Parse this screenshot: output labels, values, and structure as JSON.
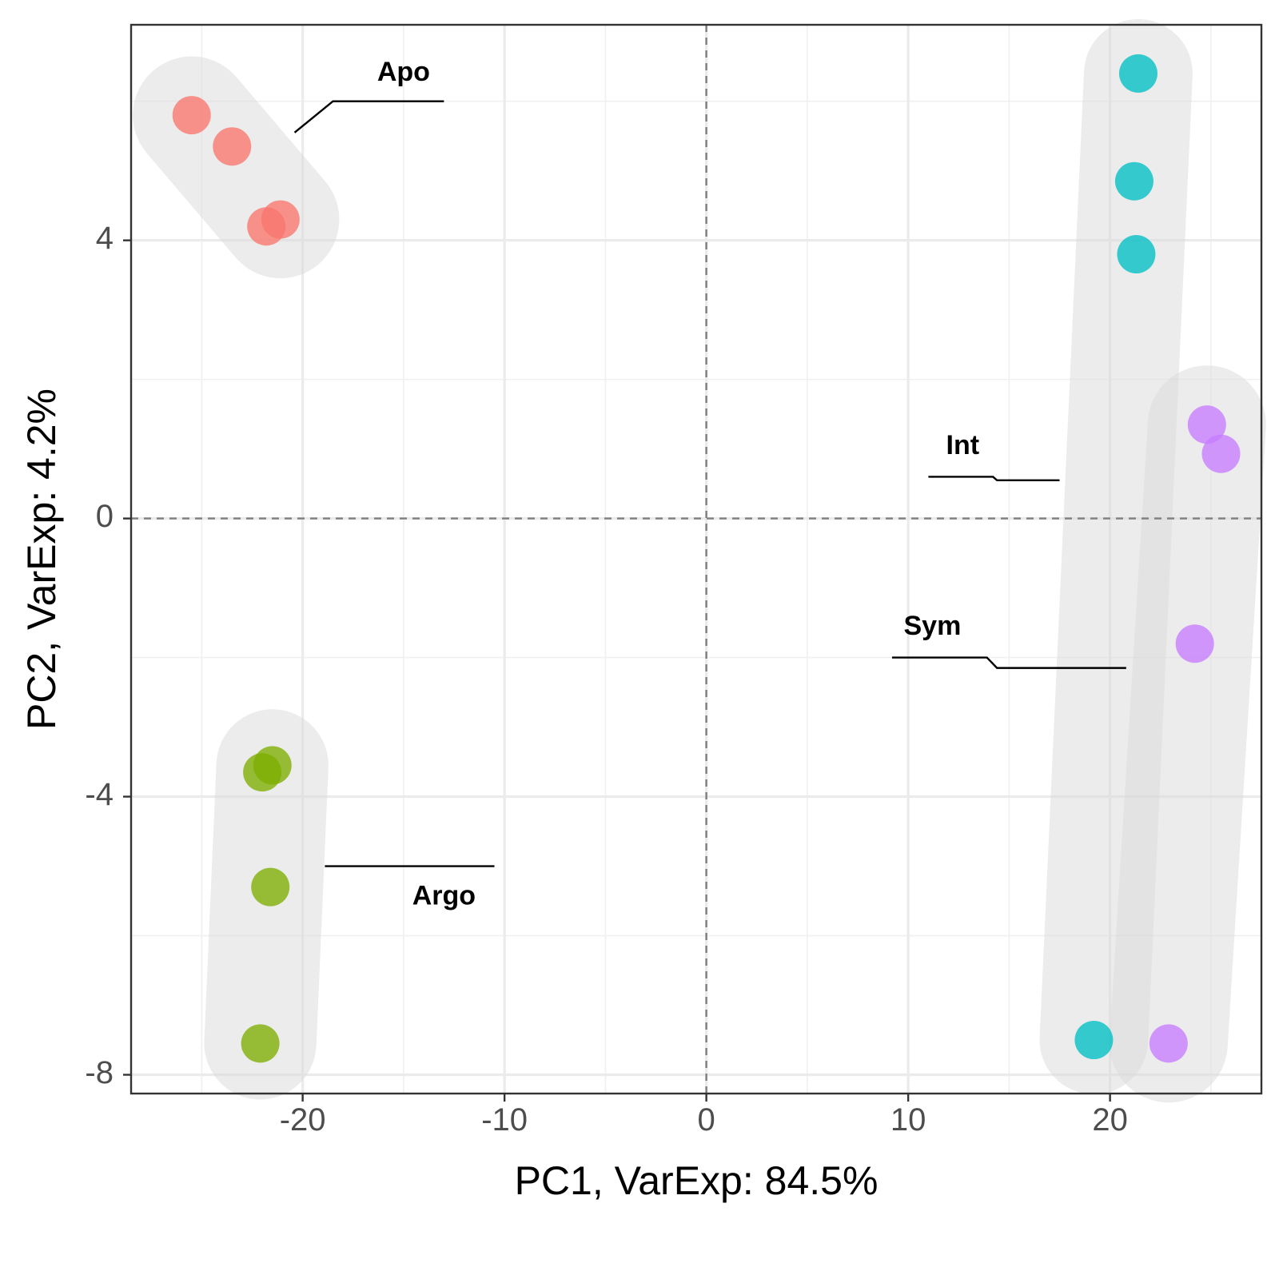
{
  "chart_data": {
    "type": "scatter",
    "title": "",
    "xlabel": "PC1, VarExp: 84.5%",
    "ylabel": "PC2, VarExp: 4.2%",
    "xlim": [
      -28.5,
      27.5
    ],
    "ylim": [
      -8.27,
      7.1
    ],
    "x_ticks": [
      -20,
      -10,
      0,
      10,
      20
    ],
    "x_tick_labels": [
      "-20",
      "-10",
      "0",
      "10",
      "20"
    ],
    "y_ticks": [
      -8,
      -4,
      0,
      4
    ],
    "y_tick_labels": [
      "-8",
      "-4",
      "0",
      "4"
    ],
    "grid": true,
    "reference_lines": {
      "x": 0,
      "y": 0,
      "style": "dashed"
    },
    "legend": "none",
    "series": [
      {
        "group": "Apo",
        "color": "#F8766D",
        "label_position": [
          -15,
          6.4
        ],
        "leader": [
          [
            -20.4,
            5.55
          ],
          [
            -18.5,
            6.0
          ],
          [
            -13,
            6.0
          ]
        ],
        "points": [
          [
            -25.5,
            5.8
          ],
          [
            -23.5,
            5.35
          ],
          [
            -21.8,
            4.2
          ],
          [
            -21.1,
            4.3
          ]
        ]
      },
      {
        "group": "Argo",
        "color": "#7CAE00",
        "label_position": [
          -13,
          -5.45
        ],
        "leader": [
          [
            -18.9,
            -5.0
          ],
          [
            -10.5,
            -5.0
          ]
        ],
        "points": [
          [
            -21.5,
            -3.55
          ],
          [
            -22.0,
            -3.65
          ],
          [
            -21.6,
            -5.3
          ],
          [
            -22.1,
            -7.55
          ]
        ]
      },
      {
        "group": "Int",
        "color": "#00BFC4",
        "label_position": [
          12.7,
          1.03
        ],
        "leader": [
          [
            11.0,
            0.6
          ],
          [
            14.2,
            0.6
          ],
          [
            14.4,
            0.55
          ],
          [
            17.5,
            0.55
          ]
        ],
        "points": [
          [
            21.4,
            6.4
          ],
          [
            21.2,
            4.85
          ],
          [
            21.3,
            3.8
          ],
          [
            19.2,
            -7.5
          ]
        ]
      },
      {
        "group": "Sym",
        "color": "#C77CFF",
        "label_position": [
          11.2,
          -1.57
        ],
        "leader": [
          [
            9.2,
            -2.0
          ],
          [
            13.9,
            -2.0
          ],
          [
            14.4,
            -2.15
          ],
          [
            20.8,
            -2.15
          ]
        ],
        "points": [
          [
            24.8,
            1.35
          ],
          [
            25.5,
            0.93
          ],
          [
            24.2,
            -1.8
          ],
          [
            22.9,
            -7.55
          ]
        ]
      }
    ]
  }
}
